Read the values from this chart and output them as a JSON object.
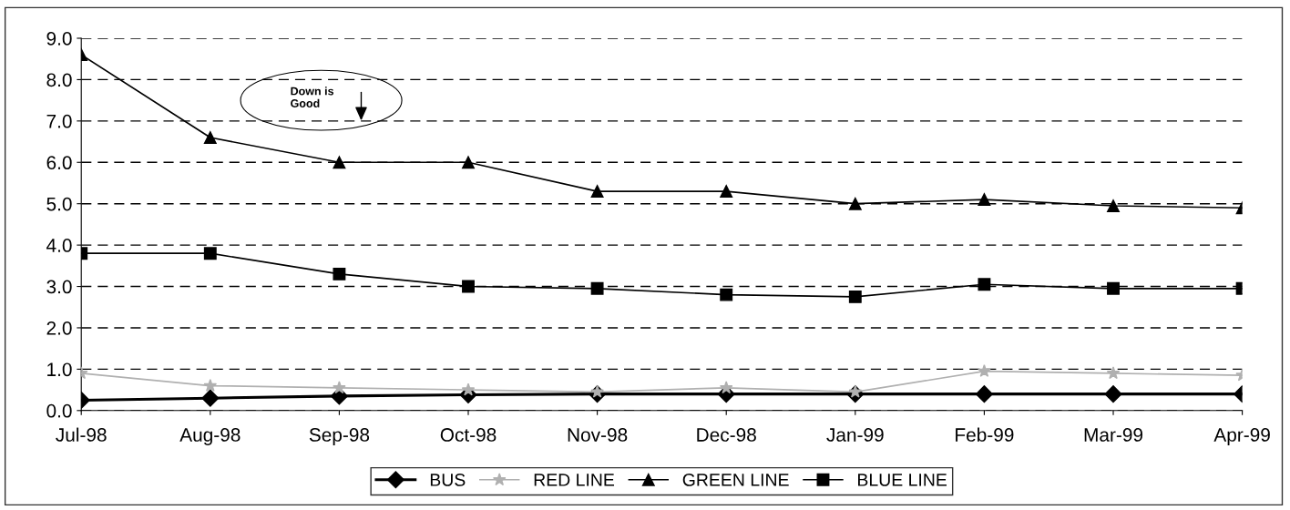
{
  "chart_data": {
    "type": "line",
    "categories": [
      "Jul-98",
      "Aug-98",
      "Sep-98",
      "Oct-98",
      "Nov-98",
      "Dec-98",
      "Jan-99",
      "Feb-99",
      "Mar-99",
      "Apr-99"
    ],
    "series": [
      {
        "name": "BUS",
        "color": "#000000",
        "marker": "diamond",
        "values": [
          0.25,
          0.3,
          0.35,
          0.38,
          0.4,
          0.4,
          0.4,
          0.4,
          0.4,
          0.4
        ]
      },
      {
        "name": "RED LINE",
        "color": "#b0b0b0",
        "marker": "star",
        "values": [
          0.9,
          0.6,
          0.55,
          0.5,
          0.45,
          0.55,
          0.45,
          0.95,
          0.9,
          0.85
        ]
      },
      {
        "name": "GREEN LINE",
        "color": "#000000",
        "marker": "triangle",
        "values": [
          8.6,
          6.6,
          6.0,
          6.0,
          5.3,
          5.3,
          5.0,
          5.1,
          4.95,
          4.9
        ]
      },
      {
        "name": "BLUE LINE",
        "color": "#000000",
        "marker": "square",
        "values": [
          3.8,
          3.8,
          3.3,
          3.0,
          2.95,
          2.8,
          2.75,
          3.05,
          2.95,
          2.95
        ]
      }
    ],
    "ylim": [
      0,
      9
    ],
    "yticks": [
      {
        "value": 0,
        "label": "0.0"
      },
      {
        "value": 1,
        "label": "1.0"
      },
      {
        "value": 2,
        "label": "2.0"
      },
      {
        "value": 3,
        "label": "3.0"
      },
      {
        "value": 4,
        "label": "4.0"
      },
      {
        "value": 5,
        "label": "5.0"
      },
      {
        "value": 6,
        "label": "6.0"
      },
      {
        "value": 7,
        "label": "7.0"
      },
      {
        "value": 8,
        "label": "8.0"
      },
      {
        "value": 9,
        "label": "9.0"
      }
    ],
    "grid": "y",
    "legend": "bottom",
    "line_style": "solid",
    "annotations": [
      "Down is\nGood"
    ]
  }
}
